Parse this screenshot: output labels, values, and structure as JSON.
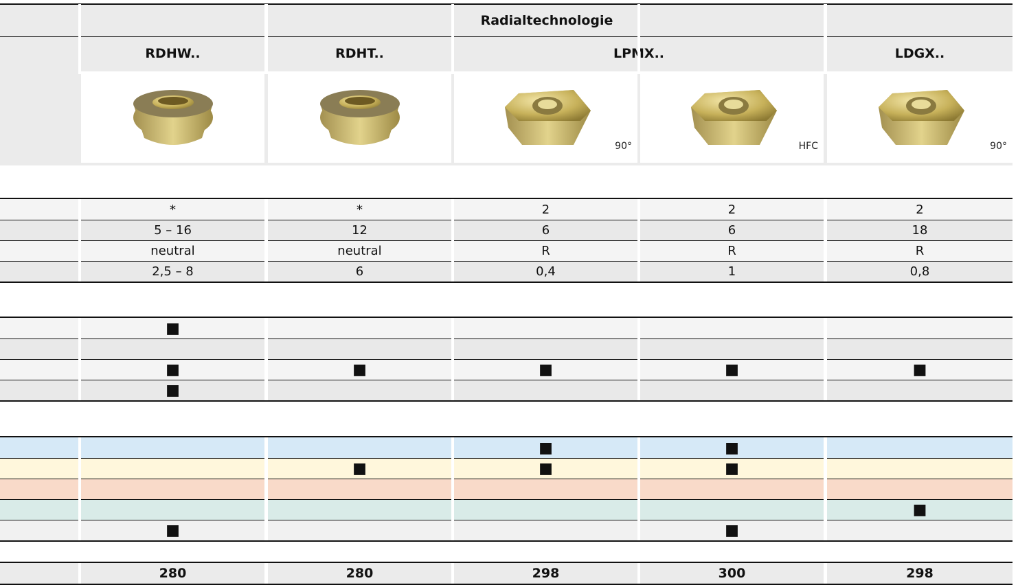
{
  "header": {
    "title": "Radialtechnologie",
    "groups": [
      "RDHW..",
      "RDHT..",
      "LPMX..",
      "LDGX.."
    ]
  },
  "image_notes": {
    "2": "90°",
    "3": "HFC",
    "4": "90°"
  },
  "sections": [
    {
      "rows": [
        [
          "*",
          "*",
          "2",
          "2",
          "2"
        ],
        [
          "5 – 16",
          "12",
          "6",
          "6",
          "18"
        ],
        [
          "neutral",
          "neutral",
          "R",
          "R",
          "R"
        ],
        [
          "2,5 – 8",
          "6",
          "0,4",
          "1",
          "0,8"
        ]
      ]
    },
    {
      "rows": [
        [
          "■",
          null,
          null,
          null,
          null
        ],
        [
          null,
          null,
          null,
          null,
          null
        ],
        [
          "■",
          "■",
          "■",
          "■",
          "■"
        ],
        [
          "■",
          null,
          null,
          null,
          null
        ]
      ]
    },
    {
      "rows": [
        [
          null,
          null,
          "■",
          "■",
          null
        ],
        [
          null,
          "■",
          "■",
          "■",
          null
        ],
        [
          null,
          null,
          null,
          null,
          null
        ],
        [
          null,
          null,
          null,
          null,
          "■"
        ],
        [
          "■",
          null,
          null,
          "■",
          null
        ]
      ]
    },
    {
      "rows": [
        [
          280,
          280,
          298,
          300,
          298
        ]
      ]
    }
  ]
}
